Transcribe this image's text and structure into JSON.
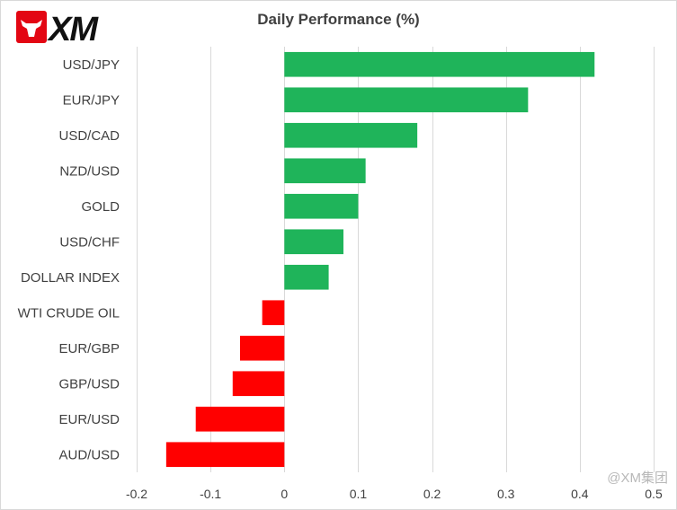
{
  "logo": {
    "text": "XM",
    "icon": "bull-icon"
  },
  "watermark": "@XM集团",
  "colors": {
    "positive": "#1fb45a",
    "negative": "#ff0000",
    "grid": "#d9d9d9",
    "text": "#404040"
  },
  "chart_data": {
    "type": "bar",
    "orientation": "horizontal",
    "title": "Daily Performance (%)",
    "xlabel": "",
    "ylabel": "",
    "categories": [
      "USD/JPY",
      "EUR/JPY",
      "USD/CAD",
      "NZD/USD",
      "GOLD",
      "USD/CHF",
      "DOLLAR INDEX",
      "WTI CRUDE OIL",
      "EUR/GBP",
      "GBP/USD",
      "EUR/USD",
      "AUD/USD"
    ],
    "values": [
      0.42,
      0.33,
      0.18,
      0.11,
      0.1,
      0.08,
      0.06,
      -0.03,
      -0.06,
      -0.07,
      -0.12,
      -0.16
    ],
    "xlim": [
      -0.2,
      0.5
    ],
    "xticks": [
      -0.2,
      -0.1,
      0,
      0.1,
      0.2,
      0.3,
      0.4,
      0.5
    ],
    "xtick_labels": [
      "-0.2",
      "-0.1",
      "0",
      "0.1",
      "0.2",
      "0.3",
      "0.4",
      "0.5"
    ],
    "grid": "vertical"
  }
}
